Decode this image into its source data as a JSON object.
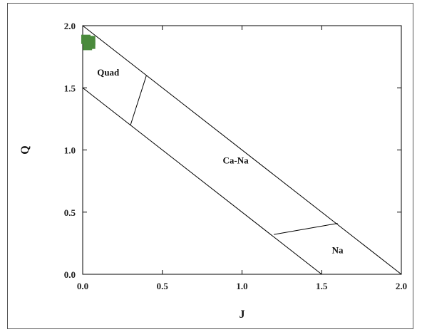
{
  "chart_data": {
    "type": "scatter",
    "title": "",
    "xlabel": "J",
    "ylabel": "Q",
    "xlim": [
      0.0,
      2.0
    ],
    "ylim": [
      0.0,
      2.0
    ],
    "x_ticks": [
      "0.0",
      "0.5",
      "1.0",
      "1.5",
      "2.0"
    ],
    "y_ticks": [
      "0.0",
      "0.5",
      "1.0",
      "1.5",
      "2.0"
    ],
    "grid": false,
    "marker_color": "#4a8a3c",
    "line_color": "#000000",
    "series": [
      {
        "points": [
          {
            "x": 0.02,
            "y": 1.89
          },
          {
            "x": 0.04,
            "y": 1.87
          },
          {
            "x": 0.05,
            "y": 1.85
          },
          {
            "x": 0.03,
            "y": 1.84
          },
          {
            "x": 0.05,
            "y": 1.88
          }
        ]
      }
    ],
    "boundary_lines": [
      {
        "from": [
          0.0,
          2.0
        ],
        "to": [
          2.0,
          0.0
        ]
      },
      {
        "from": [
          0.0,
          1.5
        ],
        "to": [
          1.5,
          0.0
        ]
      },
      {
        "from": [
          0.3,
          1.2
        ],
        "to": [
          0.4,
          1.6
        ]
      },
      {
        "from": [
          1.2,
          0.32
        ],
        "to": [
          1.6,
          0.41
        ]
      }
    ],
    "region_labels": [
      {
        "text": "Quad",
        "x": 0.16,
        "y": 1.6
      },
      {
        "text": "Ca-Na",
        "x": 0.96,
        "y": 0.89
      },
      {
        "text": "Na",
        "x": 1.6,
        "y": 0.17
      }
    ]
  }
}
